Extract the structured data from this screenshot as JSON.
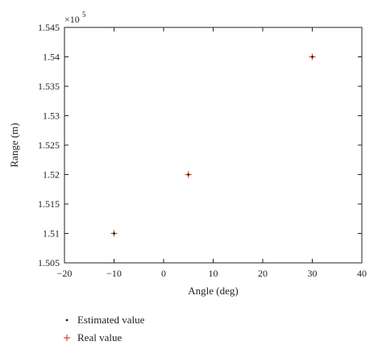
{
  "chart_data": {
    "type": "scatter",
    "xlabel": "Angle (deg)",
    "ylabel": "Range (m)",
    "xlim": [
      -20,
      40
    ],
    "ylim": [
      1.505,
      1.545
    ],
    "x_ticks": [
      "−20",
      "−10",
      "0",
      "10",
      "20",
      "30",
      "40"
    ],
    "y_ticks": [
      "1.505",
      "1.51",
      "1.515",
      "1.52",
      "1.525",
      "1.53",
      "1.535",
      "1.54",
      "1.545"
    ],
    "y_multiplier_base": "×10",
    "y_multiplier_exp": "5",
    "grid": false,
    "legend_position": "bottom-left",
    "series": [
      {
        "name": "Estimated value",
        "marker": "dot",
        "color": "#1a1a1a",
        "points": [
          {
            "x": -10,
            "y": 1.51
          },
          {
            "x": 5,
            "y": 1.52
          },
          {
            "x": 30,
            "y": 1.54
          }
        ]
      },
      {
        "name": "Real value",
        "marker": "plus",
        "color": "#c0501e",
        "points": [
          {
            "x": -10,
            "y": 1.51
          },
          {
            "x": 5,
            "y": 1.52
          },
          {
            "x": 30,
            "y": 1.54
          }
        ]
      }
    ]
  }
}
